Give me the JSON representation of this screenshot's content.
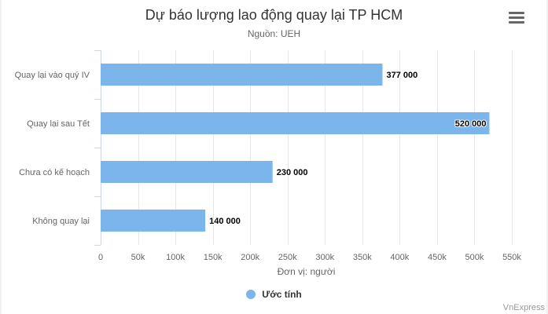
{
  "chart_data": {
    "type": "bar",
    "orientation": "horizontal",
    "title": "Dự báo lượng lao động quay lại TP HCM",
    "subtitle": "Nguồn: UEH",
    "categories": [
      "Quay lại vào quý IV",
      "Quay lại sau Tết",
      "Chưa có kế hoạch",
      "Không quay lại"
    ],
    "series": [
      {
        "name": "Ước tính",
        "values": [
          377000,
          520000,
          230000,
          140000
        ],
        "data_labels": [
          "377 000",
          "520 000",
          "230 000",
          "140 000"
        ],
        "color": "#7cb5ec"
      }
    ],
    "xlabel": "Đơn vị: người",
    "xlim": [
      0,
      550000
    ],
    "ticks": [
      0,
      50000,
      100000,
      150000,
      200000,
      250000,
      300000,
      350000,
      400000,
      450000,
      500000,
      550000
    ],
    "tick_labels": [
      "0",
      "50k",
      "100k",
      "150k",
      "200k",
      "250k",
      "300k",
      "350k",
      "400k",
      "450k",
      "500k",
      "550k"
    ],
    "grid": true,
    "legend_position": "bottom"
  },
  "menu_icon": "hamburger-menu-icon",
  "credit": "VnExpress"
}
